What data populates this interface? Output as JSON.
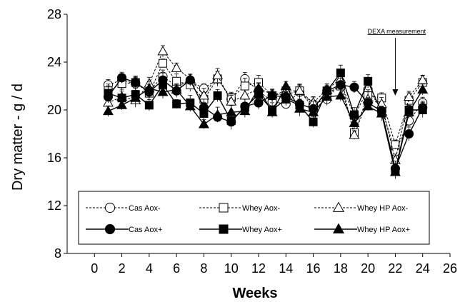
{
  "chart_data": {
    "type": "line",
    "title": "",
    "xlabel": "Weeks",
    "ylabel": "Dry matter - g / d",
    "xlim": [
      -2,
      26
    ],
    "ylim": [
      8,
      28
    ],
    "xticks": [
      0,
      2,
      4,
      6,
      8,
      10,
      12,
      14,
      16,
      18,
      20,
      22,
      24,
      26
    ],
    "yticks": [
      8,
      12,
      16,
      20,
      24,
      28
    ],
    "grid": false,
    "legend_position": "bottom inside",
    "annotation": {
      "label": "DEXA measurement",
      "x": 22
    },
    "x": [
      1,
      2,
      3,
      4,
      5,
      6,
      7,
      8,
      9,
      10,
      11,
      12,
      13,
      14,
      15,
      16,
      17,
      18,
      19,
      20,
      21,
      22,
      23,
      24
    ],
    "series": [
      {
        "name": "Cas Aox-",
        "marker": "circle",
        "fill": "open",
        "dashed": true,
        "color": "#000000",
        "values": [
          22.1,
          22.5,
          22.2,
          21.6,
          22.8,
          22.0,
          22.4,
          21.8,
          22.6,
          20.9,
          22.6,
          21.6,
          20.7,
          20.5,
          21.5,
          20.5,
          20.9,
          22.3,
          19.5,
          21.7,
          20.1,
          16.5,
          19.1,
          20.6
        ]
      },
      {
        "name": "Whey Aox-",
        "marker": "square",
        "fill": "open",
        "dashed": true,
        "color": "#000000",
        "values": [
          21.6,
          22.2,
          22.3,
          21.4,
          23.9,
          22.4,
          22.1,
          20.9,
          22.6,
          21.0,
          22.0,
          22.3,
          21.2,
          21.6,
          21.6,
          20.2,
          21.4,
          22.0,
          18.1,
          21.2,
          21.0,
          17.1,
          20.8,
          22.3
        ]
      },
      {
        "name": "Whey HP Aox-",
        "marker": "triangle",
        "fill": "open",
        "dashed": true,
        "color": "#000000",
        "values": [
          20.6,
          21.1,
          20.8,
          22.2,
          24.9,
          23.5,
          22.6,
          21.2,
          22.9,
          20.7,
          21.2,
          21.8,
          21.3,
          21.3,
          21.6,
          20.6,
          21.7,
          22.6,
          17.9,
          20.9,
          20.5,
          15.8,
          21.1,
          22.5
        ]
      },
      {
        "name": "Cas Aox+",
        "marker": "circle",
        "fill": "filled",
        "dashed": false,
        "color": "#000000",
        "values": [
          21.1,
          22.7,
          22.3,
          21.5,
          22.5,
          21.6,
          22.5,
          20.2,
          19.4,
          19.0,
          20.3,
          20.6,
          21.2,
          21.1,
          20.5,
          20.1,
          21.6,
          22.1,
          21.9,
          20.6,
          19.9,
          15.1,
          18.0,
          20.2
        ]
      },
      {
        "name": "Whey Aox+",
        "marker": "square",
        "fill": "filled",
        "dashed": false,
        "color": "#000000",
        "values": [
          21.4,
          21.0,
          21.3,
          20.4,
          22.1,
          20.5,
          20.6,
          19.7,
          21.2,
          19.1,
          20.2,
          21.3,
          20.0,
          20.9,
          20.4,
          19.0,
          21.6,
          23.1,
          19.6,
          22.4,
          19.8,
          14.9,
          20.0,
          20.0
        ]
      },
      {
        "name": "Whey HP Aox+",
        "marker": "triangle",
        "fill": "filled",
        "dashed": false,
        "color": "#000000",
        "values": [
          19.9,
          20.4,
          21.0,
          21.8,
          21.5,
          21.7,
          20.3,
          18.8,
          19.6,
          19.8,
          19.9,
          21.8,
          19.8,
          22.0,
          20.1,
          19.8,
          21.1,
          21.2,
          18.9,
          20.3,
          19.7,
          14.8,
          19.8,
          21.7
        ]
      }
    ]
  }
}
